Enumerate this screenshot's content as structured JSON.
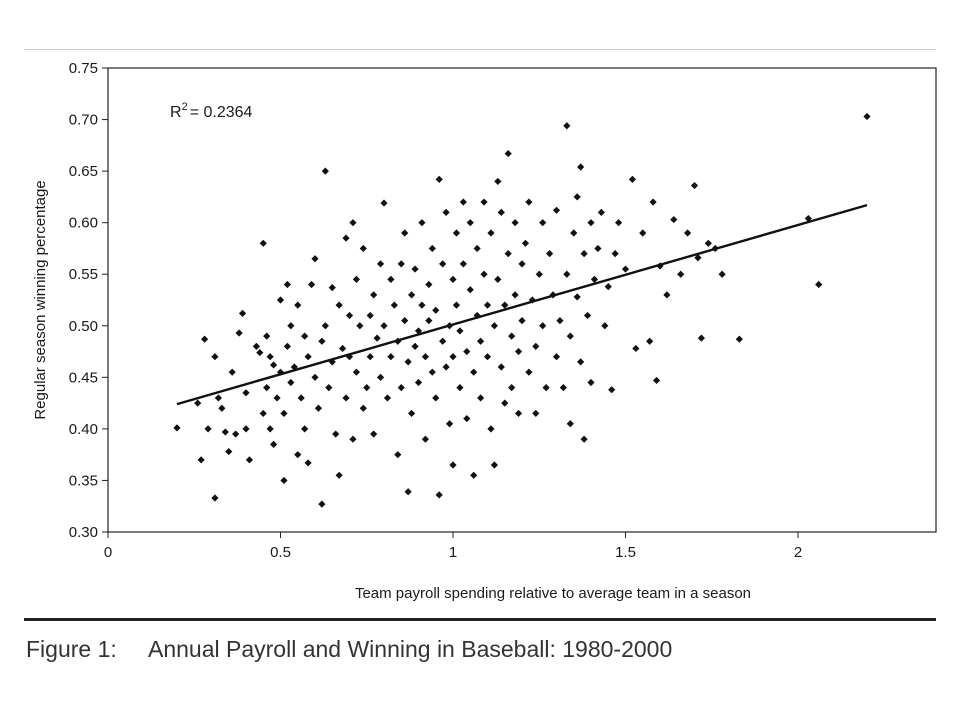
{
  "chart_data": {
    "type": "scatter",
    "title": "",
    "xlabel": "Team payroll spending relative to average team in a season",
    "ylabel": "Regular season winning percentage",
    "xlim": [
      0,
      2.4
    ],
    "ylim": [
      0.3,
      0.75
    ],
    "x_ticks": [
      0,
      0.5,
      1,
      1.5,
      2
    ],
    "x_tick_labels": [
      "0",
      "0.5",
      "1",
      "1.5",
      "2"
    ],
    "y_ticks": [
      0.3,
      0.35,
      0.4,
      0.45,
      0.5,
      0.55,
      0.6,
      0.65,
      0.7,
      0.75
    ],
    "y_tick_labels": [
      "0.30",
      "0.35",
      "0.40",
      "0.45",
      "0.50",
      "0.55",
      "0.60",
      "0.65",
      "0.70",
      "0.75"
    ],
    "grid": false,
    "legend": "none",
    "marker": "diamond",
    "marker_color": "#111111",
    "annotation": {
      "r_label": "R",
      "r_sup": "2",
      "r_value": "= 0.2364"
    },
    "trendline": {
      "x": [
        0.2,
        2.2
      ],
      "y": [
        0.424,
        0.617
      ]
    },
    "points": [
      [
        0.2,
        0.401
      ],
      [
        0.26,
        0.425
      ],
      [
        0.27,
        0.37
      ],
      [
        0.28,
        0.487
      ],
      [
        0.29,
        0.4
      ],
      [
        0.31,
        0.333
      ],
      [
        0.31,
        0.47
      ],
      [
        0.32,
        0.43
      ],
      [
        0.33,
        0.42
      ],
      [
        0.34,
        0.397
      ],
      [
        0.35,
        0.378
      ],
      [
        0.36,
        0.455
      ],
      [
        0.37,
        0.395
      ],
      [
        0.38,
        0.493
      ],
      [
        0.39,
        0.512
      ],
      [
        0.4,
        0.435
      ],
      [
        0.4,
        0.4
      ],
      [
        0.41,
        0.37
      ],
      [
        0.43,
        0.48
      ],
      [
        0.44,
        0.474
      ],
      [
        0.45,
        0.58
      ],
      [
        0.45,
        0.415
      ],
      [
        0.46,
        0.49
      ],
      [
        0.46,
        0.44
      ],
      [
        0.47,
        0.47
      ],
      [
        0.47,
        0.4
      ],
      [
        0.48,
        0.462
      ],
      [
        0.48,
        0.385
      ],
      [
        0.49,
        0.43
      ],
      [
        0.5,
        0.525
      ],
      [
        0.5,
        0.455
      ],
      [
        0.51,
        0.35
      ],
      [
        0.51,
        0.415
      ],
      [
        0.52,
        0.48
      ],
      [
        0.52,
        0.54
      ],
      [
        0.53,
        0.5
      ],
      [
        0.53,
        0.445
      ],
      [
        0.54,
        0.46
      ],
      [
        0.55,
        0.375
      ],
      [
        0.55,
        0.52
      ],
      [
        0.56,
        0.43
      ],
      [
        0.57,
        0.49
      ],
      [
        0.57,
        0.4
      ],
      [
        0.58,
        0.47
      ],
      [
        0.58,
        0.367
      ],
      [
        0.59,
        0.54
      ],
      [
        0.6,
        0.45
      ],
      [
        0.6,
        0.565
      ],
      [
        0.61,
        0.42
      ],
      [
        0.62,
        0.327
      ],
      [
        0.62,
        0.485
      ],
      [
        0.63,
        0.65
      ],
      [
        0.63,
        0.5
      ],
      [
        0.64,
        0.44
      ],
      [
        0.65,
        0.537
      ],
      [
        0.65,
        0.465
      ],
      [
        0.66,
        0.395
      ],
      [
        0.67,
        0.52
      ],
      [
        0.67,
        0.355
      ],
      [
        0.68,
        0.478
      ],
      [
        0.69,
        0.585
      ],
      [
        0.69,
        0.43
      ],
      [
        0.7,
        0.51
      ],
      [
        0.7,
        0.47
      ],
      [
        0.71,
        0.6
      ],
      [
        0.71,
        0.39
      ],
      [
        0.72,
        0.545
      ],
      [
        0.72,
        0.455
      ],
      [
        0.73,
        0.5
      ],
      [
        0.74,
        0.42
      ],
      [
        0.74,
        0.575
      ],
      [
        0.75,
        0.44
      ],
      [
        0.76,
        0.51
      ],
      [
        0.76,
        0.47
      ],
      [
        0.77,
        0.53
      ],
      [
        0.77,
        0.395
      ],
      [
        0.78,
        0.488
      ],
      [
        0.79,
        0.56
      ],
      [
        0.79,
        0.45
      ],
      [
        0.8,
        0.619
      ],
      [
        0.8,
        0.5
      ],
      [
        0.81,
        0.43
      ],
      [
        0.82,
        0.545
      ],
      [
        0.82,
        0.47
      ],
      [
        0.83,
        0.52
      ],
      [
        0.84,
        0.375
      ],
      [
        0.84,
        0.485
      ],
      [
        0.85,
        0.56
      ],
      [
        0.85,
        0.44
      ],
      [
        0.86,
        0.505
      ],
      [
        0.86,
        0.59
      ],
      [
        0.87,
        0.465
      ],
      [
        0.87,
        0.339
      ],
      [
        0.88,
        0.53
      ],
      [
        0.88,
        0.415
      ],
      [
        0.89,
        0.48
      ],
      [
        0.89,
        0.555
      ],
      [
        0.9,
        0.495
      ],
      [
        0.9,
        0.445
      ],
      [
        0.91,
        0.52
      ],
      [
        0.91,
        0.6
      ],
      [
        0.92,
        0.47
      ],
      [
        0.92,
        0.39
      ],
      [
        0.93,
        0.54
      ],
      [
        0.93,
        0.505
      ],
      [
        0.94,
        0.455
      ],
      [
        0.94,
        0.575
      ],
      [
        0.95,
        0.43
      ],
      [
        0.95,
        0.515
      ],
      [
        0.96,
        0.642
      ],
      [
        0.96,
        0.336
      ],
      [
        0.97,
        0.485
      ],
      [
        0.97,
        0.56
      ],
      [
        0.98,
        0.46
      ],
      [
        0.98,
        0.61
      ],
      [
        0.99,
        0.5
      ],
      [
        0.99,
        0.405
      ],
      [
        1.0,
        0.545
      ],
      [
        1.0,
        0.47
      ],
      [
        1.0,
        0.365
      ],
      [
        1.01,
        0.59
      ],
      [
        1.01,
        0.52
      ],
      [
        1.02,
        0.44
      ],
      [
        1.02,
        0.495
      ],
      [
        1.03,
        0.62
      ],
      [
        1.03,
        0.56
      ],
      [
        1.04,
        0.475
      ],
      [
        1.04,
        0.41
      ],
      [
        1.05,
        0.535
      ],
      [
        1.05,
        0.6
      ],
      [
        1.06,
        0.455
      ],
      [
        1.06,
        0.355
      ],
      [
        1.07,
        0.51
      ],
      [
        1.07,
        0.575
      ],
      [
        1.08,
        0.485
      ],
      [
        1.08,
        0.43
      ],
      [
        1.09,
        0.55
      ],
      [
        1.09,
        0.62
      ],
      [
        1.1,
        0.47
      ],
      [
        1.1,
        0.52
      ],
      [
        1.11,
        0.4
      ],
      [
        1.11,
        0.59
      ],
      [
        1.12,
        0.5
      ],
      [
        1.12,
        0.365
      ],
      [
        1.13,
        0.64
      ],
      [
        1.13,
        0.545
      ],
      [
        1.14,
        0.46
      ],
      [
        1.14,
        0.61
      ],
      [
        1.15,
        0.52
      ],
      [
        1.15,
        0.425
      ],
      [
        1.16,
        0.667
      ],
      [
        1.16,
        0.57
      ],
      [
        1.17,
        0.49
      ],
      [
        1.17,
        0.44
      ],
      [
        1.18,
        0.6
      ],
      [
        1.18,
        0.53
      ],
      [
        1.19,
        0.475
      ],
      [
        1.19,
        0.415
      ],
      [
        1.2,
        0.56
      ],
      [
        1.2,
        0.505
      ],
      [
        1.21,
        0.58
      ],
      [
        1.22,
        0.455
      ],
      [
        1.22,
        0.62
      ],
      [
        1.23,
        0.525
      ],
      [
        1.24,
        0.48
      ],
      [
        1.24,
        0.415
      ],
      [
        1.25,
        0.55
      ],
      [
        1.26,
        0.6
      ],
      [
        1.26,
        0.5
      ],
      [
        1.27,
        0.44
      ],
      [
        1.28,
        0.57
      ],
      [
        1.29,
        0.53
      ],
      [
        1.3,
        0.47
      ],
      [
        1.3,
        0.612
      ],
      [
        1.31,
        0.505
      ],
      [
        1.32,
        0.44
      ],
      [
        1.33,
        0.694
      ],
      [
        1.33,
        0.55
      ],
      [
        1.34,
        0.405
      ],
      [
        1.34,
        0.49
      ],
      [
        1.35,
        0.59
      ],
      [
        1.36,
        0.528
      ],
      [
        1.36,
        0.625
      ],
      [
        1.37,
        0.654
      ],
      [
        1.37,
        0.465
      ],
      [
        1.38,
        0.57
      ],
      [
        1.38,
        0.39
      ],
      [
        1.39,
        0.51
      ],
      [
        1.4,
        0.6
      ],
      [
        1.4,
        0.445
      ],
      [
        1.41,
        0.545
      ],
      [
        1.42,
        0.575
      ],
      [
        1.43,
        0.61
      ],
      [
        1.44,
        0.5
      ],
      [
        1.45,
        0.538
      ],
      [
        1.46,
        0.438
      ],
      [
        1.47,
        0.57
      ],
      [
        1.48,
        0.6
      ],
      [
        1.5,
        0.555
      ],
      [
        1.52,
        0.642
      ],
      [
        1.53,
        0.478
      ],
      [
        1.55,
        0.59
      ],
      [
        1.57,
        0.485
      ],
      [
        1.58,
        0.62
      ],
      [
        1.59,
        0.447
      ],
      [
        1.6,
        0.558
      ],
      [
        1.62,
        0.53
      ],
      [
        1.64,
        0.603
      ],
      [
        1.66,
        0.55
      ],
      [
        1.68,
        0.59
      ],
      [
        1.7,
        0.636
      ],
      [
        1.71,
        0.566
      ],
      [
        1.72,
        0.488
      ],
      [
        1.74,
        0.58
      ],
      [
        1.76,
        0.575
      ],
      [
        1.78,
        0.55
      ],
      [
        1.83,
        0.487
      ],
      [
        2.03,
        0.604
      ],
      [
        2.06,
        0.54
      ],
      [
        2.2,
        0.703
      ]
    ]
  },
  "caption": {
    "label": "Figure 1:",
    "text": "Annual Payroll and Winning in Baseball: 1980-2000"
  }
}
